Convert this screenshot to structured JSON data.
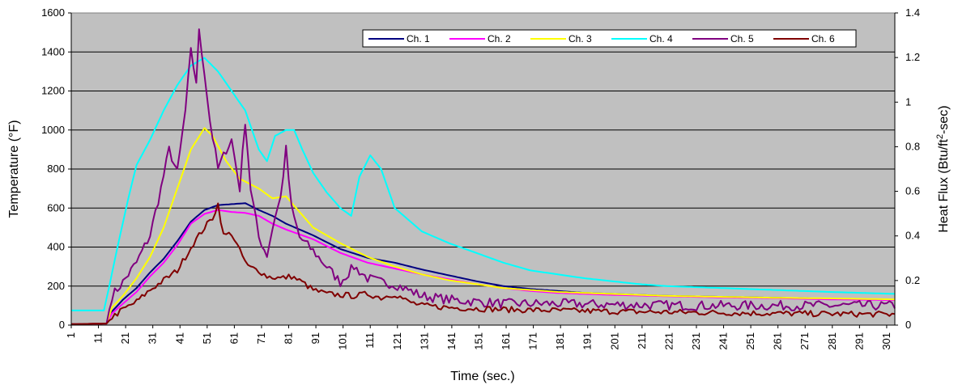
{
  "chart_data": {
    "type": "line",
    "title": "",
    "xlabel": "Time (sec.)",
    "ylabel": "Temperature (°F)",
    "y2label_base": "Heat Flux (Btu/ft",
    "y2label_sup": "2",
    "y2label_end": "-sec)",
    "xlim": [
      1,
      304
    ],
    "ylim": [
      0,
      1600
    ],
    "y2lim": [
      0,
      1.4
    ],
    "x_ticks": [
      1,
      11,
      21,
      31,
      41,
      51,
      61,
      71,
      81,
      91,
      101,
      111,
      121,
      131,
      141,
      151,
      161,
      171,
      181,
      191,
      201,
      211,
      221,
      231,
      241,
      251,
      261,
      271,
      281,
      291,
      301
    ],
    "y_ticks": [
      0,
      200,
      400,
      600,
      800,
      1000,
      1200,
      1400,
      1600
    ],
    "y2_ticks": [
      0,
      0.2,
      0.4,
      0.6,
      0.8,
      1,
      1.2,
      1.4
    ],
    "grid": true,
    "legend_position": "top-right",
    "plot_background": "#c0c0c0",
    "series": [
      {
        "name": "Ch. 1",
        "color": "#000080",
        "noise": 0,
        "points": [
          [
            1,
            5
          ],
          [
            14,
            8
          ],
          [
            16,
            70
          ],
          [
            20,
            130
          ],
          [
            25,
            190
          ],
          [
            30,
            270
          ],
          [
            35,
            340
          ],
          [
            40,
            430
          ],
          [
            45,
            530
          ],
          [
            50,
            590
          ],
          [
            55,
            615
          ],
          [
            60,
            620
          ],
          [
            65,
            625
          ],
          [
            70,
            590
          ],
          [
            75,
            560
          ],
          [
            80,
            520
          ],
          [
            90,
            460
          ],
          [
            100,
            390
          ],
          [
            110,
            345
          ],
          [
            120,
            320
          ],
          [
            130,
            285
          ],
          [
            140,
            255
          ],
          [
            150,
            225
          ],
          [
            160,
            200
          ],
          [
            170,
            185
          ],
          [
            180,
            175
          ],
          [
            190,
            165
          ],
          [
            200,
            160
          ],
          [
            220,
            150
          ],
          [
            240,
            145
          ],
          [
            260,
            140
          ],
          [
            280,
            135
          ],
          [
            304,
            130
          ]
        ]
      },
      {
        "name": "Ch. 2",
        "color": "#ff00ff",
        "noise": 0,
        "points": [
          [
            1,
            5
          ],
          [
            14,
            8
          ],
          [
            16,
            60
          ],
          [
            20,
            110
          ],
          [
            25,
            170
          ],
          [
            30,
            250
          ],
          [
            35,
            320
          ],
          [
            40,
            410
          ],
          [
            45,
            520
          ],
          [
            50,
            570
          ],
          [
            55,
            590
          ],
          [
            60,
            580
          ],
          [
            65,
            575
          ],
          [
            70,
            560
          ],
          [
            75,
            520
          ],
          [
            80,
            490
          ],
          [
            90,
            440
          ],
          [
            100,
            370
          ],
          [
            110,
            320
          ],
          [
            120,
            290
          ],
          [
            130,
            260
          ],
          [
            140,
            235
          ],
          [
            150,
            210
          ],
          [
            160,
            190
          ],
          [
            170,
            175
          ],
          [
            180,
            165
          ],
          [
            190,
            160
          ],
          [
            200,
            155
          ],
          [
            220,
            148
          ],
          [
            240,
            142
          ],
          [
            260,
            138
          ],
          [
            280,
            132
          ],
          [
            304,
            128
          ]
        ]
      },
      {
        "name": "Ch. 3",
        "color": "#ffff00",
        "noise": 0,
        "points": [
          [
            1,
            5
          ],
          [
            14,
            8
          ],
          [
            16,
            90
          ],
          [
            20,
            150
          ],
          [
            25,
            240
          ],
          [
            30,
            350
          ],
          [
            35,
            500
          ],
          [
            40,
            700
          ],
          [
            45,
            900
          ],
          [
            50,
            1010
          ],
          [
            53,
            970
          ],
          [
            58,
            840
          ],
          [
            63,
            750
          ],
          [
            70,
            700
          ],
          [
            75,
            650
          ],
          [
            80,
            660
          ],
          [
            85,
            580
          ],
          [
            90,
            500
          ],
          [
            100,
            420
          ],
          [
            110,
            350
          ],
          [
            120,
            300
          ],
          [
            130,
            260
          ],
          [
            140,
            230
          ],
          [
            150,
            210
          ],
          [
            160,
            190
          ],
          [
            170,
            180
          ],
          [
            180,
            170
          ],
          [
            190,
            165
          ],
          [
            200,
            160
          ],
          [
            220,
            150
          ],
          [
            240,
            145
          ],
          [
            260,
            140
          ],
          [
            280,
            137
          ],
          [
            304,
            132
          ]
        ]
      },
      {
        "name": "Ch. 4",
        "color": "#00ffff",
        "noise": 0,
        "points": [
          [
            1,
            75
          ],
          [
            13,
            75
          ],
          [
            15,
            200
          ],
          [
            18,
            400
          ],
          [
            22,
            650
          ],
          [
            25,
            820
          ],
          [
            30,
            950
          ],
          [
            35,
            1100
          ],
          [
            40,
            1230
          ],
          [
            45,
            1330
          ],
          [
            50,
            1370
          ],
          [
            55,
            1300
          ],
          [
            60,
            1200
          ],
          [
            65,
            1100
          ],
          [
            70,
            900
          ],
          [
            73,
            840
          ],
          [
            76,
            970
          ],
          [
            80,
            1000
          ],
          [
            83,
            1000
          ],
          [
            86,
            900
          ],
          [
            90,
            780
          ],
          [
            95,
            680
          ],
          [
            100,
            600
          ],
          [
            104,
            560
          ],
          [
            107,
            760
          ],
          [
            111,
            870
          ],
          [
            115,
            800
          ],
          [
            120,
            600
          ],
          [
            130,
            480
          ],
          [
            140,
            420
          ],
          [
            150,
            370
          ],
          [
            160,
            320
          ],
          [
            170,
            280
          ],
          [
            180,
            260
          ],
          [
            190,
            240
          ],
          [
            200,
            225
          ],
          [
            210,
            210
          ],
          [
            220,
            200
          ],
          [
            240,
            190
          ],
          [
            260,
            180
          ],
          [
            280,
            170
          ],
          [
            304,
            160
          ]
        ]
      },
      {
        "name": "Ch. 5",
        "color": "#800080",
        "noise": 25,
        "points": [
          [
            1,
            5
          ],
          [
            14,
            8
          ],
          [
            16,
            150
          ],
          [
            20,
            220
          ],
          [
            25,
            320
          ],
          [
            30,
            460
          ],
          [
            34,
            700
          ],
          [
            37,
            900
          ],
          [
            40,
            780
          ],
          [
            43,
            1100
          ],
          [
            45,
            1400
          ],
          [
            47,
            1250
          ],
          [
            48,
            1500
          ],
          [
            50,
            1300
          ],
          [
            52,
            1050
          ],
          [
            55,
            800
          ],
          [
            58,
            900
          ],
          [
            60,
            950
          ],
          [
            63,
            700
          ],
          [
            65,
            1050
          ],
          [
            67,
            700
          ],
          [
            70,
            450
          ],
          [
            73,
            360
          ],
          [
            76,
            560
          ],
          [
            78,
            650
          ],
          [
            80,
            900
          ],
          [
            82,
            600
          ],
          [
            85,
            450
          ],
          [
            90,
            380
          ],
          [
            95,
            300
          ],
          [
            100,
            220
          ],
          [
            105,
            300
          ],
          [
            110,
            240
          ],
          [
            115,
            220
          ],
          [
            120,
            210
          ],
          [
            125,
            180
          ],
          [
            130,
            150
          ],
          [
            140,
            130
          ],
          [
            150,
            120
          ],
          [
            160,
            110
          ],
          [
            180,
            110
          ],
          [
            200,
            105
          ],
          [
            230,
            100
          ],
          [
            260,
            100
          ],
          [
            304,
            100
          ]
        ]
      },
      {
        "name": "Ch. 6",
        "color": "#800000",
        "noise": 15,
        "points": [
          [
            1,
            5
          ],
          [
            14,
            8
          ],
          [
            16,
            40
          ],
          [
            20,
            80
          ],
          [
            25,
            120
          ],
          [
            30,
            180
          ],
          [
            35,
            230
          ],
          [
            40,
            280
          ],
          [
            43,
            350
          ],
          [
            46,
            420
          ],
          [
            50,
            500
          ],
          [
            53,
            550
          ],
          [
            55,
            620
          ],
          [
            57,
            460
          ],
          [
            60,
            470
          ],
          [
            63,
            380
          ],
          [
            66,
            300
          ],
          [
            70,
            280
          ],
          [
            73,
            250
          ],
          [
            78,
            240
          ],
          [
            82,
            250
          ],
          [
            86,
            220
          ],
          [
            90,
            180
          ],
          [
            95,
            160
          ],
          [
            100,
            155
          ],
          [
            105,
            150
          ],
          [
            110,
            160
          ],
          [
            115,
            140
          ],
          [
            120,
            160
          ],
          [
            125,
            120
          ],
          [
            130,
            100
          ],
          [
            140,
            90
          ],
          [
            150,
            85
          ],
          [
            160,
            80
          ],
          [
            180,
            75
          ],
          [
            200,
            70
          ],
          [
            230,
            65
          ],
          [
            260,
            60
          ],
          [
            304,
            55
          ]
        ]
      }
    ]
  }
}
